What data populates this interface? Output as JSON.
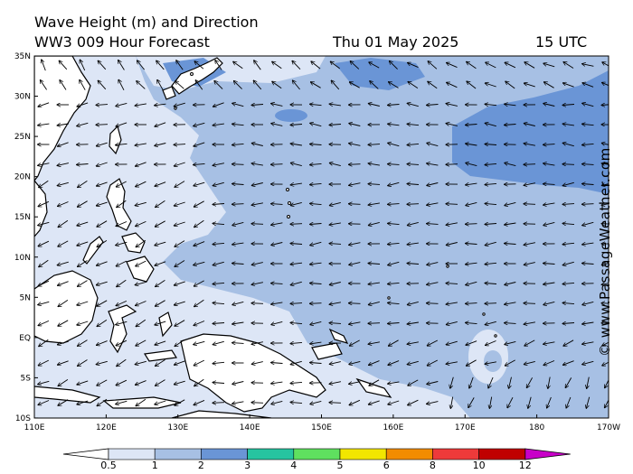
{
  "header": {
    "title": "Wave Height (m) and Direction",
    "model": "WW3 009 Hour Forecast",
    "date": "Thu 01 May 2025",
    "time": "15 UTC"
  },
  "watermark": "© www.PassageWeather.com",
  "map": {
    "lon_labels": [
      "110E",
      "120E",
      "130E",
      "140E",
      "150E",
      "160E",
      "170E",
      "180",
      "170W"
    ],
    "lat_labels": [
      "35N",
      "30N",
      "25N",
      "20N",
      "15N",
      "10N",
      "5N",
      "EQ",
      "5S",
      "10S"
    ],
    "colors": {
      "band_0_5_1": "#dde6f6",
      "band_1_2": "#a7c0e4",
      "band_2_3": "#6a95d6",
      "land": "#ffffff",
      "coast": "#000000"
    }
  },
  "legend": {
    "ticks": [
      "0.5",
      "1",
      "2",
      "3",
      "4",
      "5",
      "6",
      "8",
      "10",
      "12"
    ],
    "colors": [
      "#dde6f6",
      "#a7c0e4",
      "#6a95d6",
      "#26c4a0",
      "#5fe05f",
      "#f2e600",
      "#f28c00",
      "#ee3a3a",
      "#c00000",
      "#c800c8"
    ]
  }
}
